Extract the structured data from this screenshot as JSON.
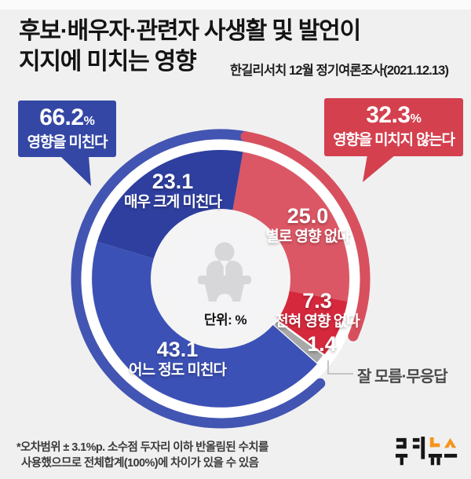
{
  "header": {
    "title_line1": "후보·배우자·관련자 사생활 및 발언이",
    "title_line2": "지지에 미치는 영향",
    "subtitle": "한길리서치 12월 정기여론조사(2021.12.13)"
  },
  "callouts": {
    "affects": {
      "value": "66.2",
      "unit": "%",
      "label": "영향을 미친다",
      "color": "#3447a4"
    },
    "not_affects": {
      "value": "32.3",
      "unit": "%",
      "label": "영향을 미치지 않는다",
      "color": "#d4404e"
    }
  },
  "chart_data": {
    "type": "pie",
    "title": "후보·배우자·관련자 사생활 및 발언이 지지에 미치는 영향",
    "unit_note": "단위: %",
    "start_angle_deg": 10,
    "legend_position": "on-slice",
    "grid": false,
    "groups": [
      {
        "label": "영향을 미친다",
        "value": 66.2,
        "display": "66.2",
        "color": "#4355b2"
      },
      {
        "label": "영향을 미치지 않는다",
        "value": 32.3,
        "display": "32.3",
        "color": "#d8505e"
      }
    ],
    "segments": [
      {
        "label": "별로 영향 없다",
        "value": 25.0,
        "display": "25.0",
        "color": "#dc5765",
        "group": "영향을 미치지 않는다"
      },
      {
        "label": "전혀 영향 없다",
        "value": 7.3,
        "display": "7.3",
        "color": "#d6283c",
        "group": "영향을 미치지 않는다"
      },
      {
        "label": "잘 모름·무응답",
        "value": 1.4,
        "display": "1.4",
        "color": "#a8a8a8",
        "outline": "#ffffff",
        "group": ""
      },
      {
        "label": "어느 정도 미친다",
        "value": 43.1,
        "display": "43.1",
        "color": "#3c51b5",
        "group": "영향을 미친다"
      },
      {
        "label": "매우 크게 미친다",
        "value": 23.1,
        "display": "23.1",
        "color": "#2f3f9f",
        "group": "영향을 미친다"
      }
    ]
  },
  "footer": {
    "note_line1": "*오차범위 ± 3.1%p. 소수점 두자리 이하 반올림된 수치를",
    "note_line2": "사용했으므로 전체합계(100%)에 차이가 있을 수 있음",
    "logo_text": "쿠키뉴스"
  }
}
